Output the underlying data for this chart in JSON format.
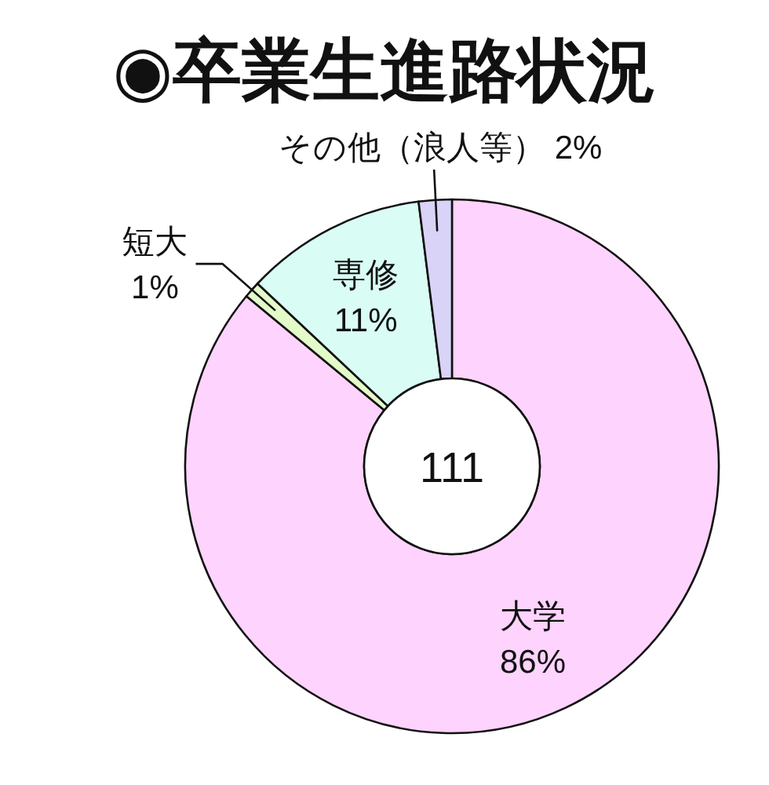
{
  "chart_data": {
    "type": "donut",
    "title": "◉卒業生進路状況",
    "categories": [
      "大学",
      "短大",
      "専修",
      "その他（浪人等）"
    ],
    "values": [
      86,
      1,
      11,
      2
    ],
    "value_labels": [
      "86%",
      "1%",
      "11%",
      "2%"
    ],
    "colors": [
      "#fed3fd",
      "#e2fbc8",
      "#d9fcf4",
      "#dad3f8"
    ],
    "annotations": [
      "111"
    ]
  }
}
